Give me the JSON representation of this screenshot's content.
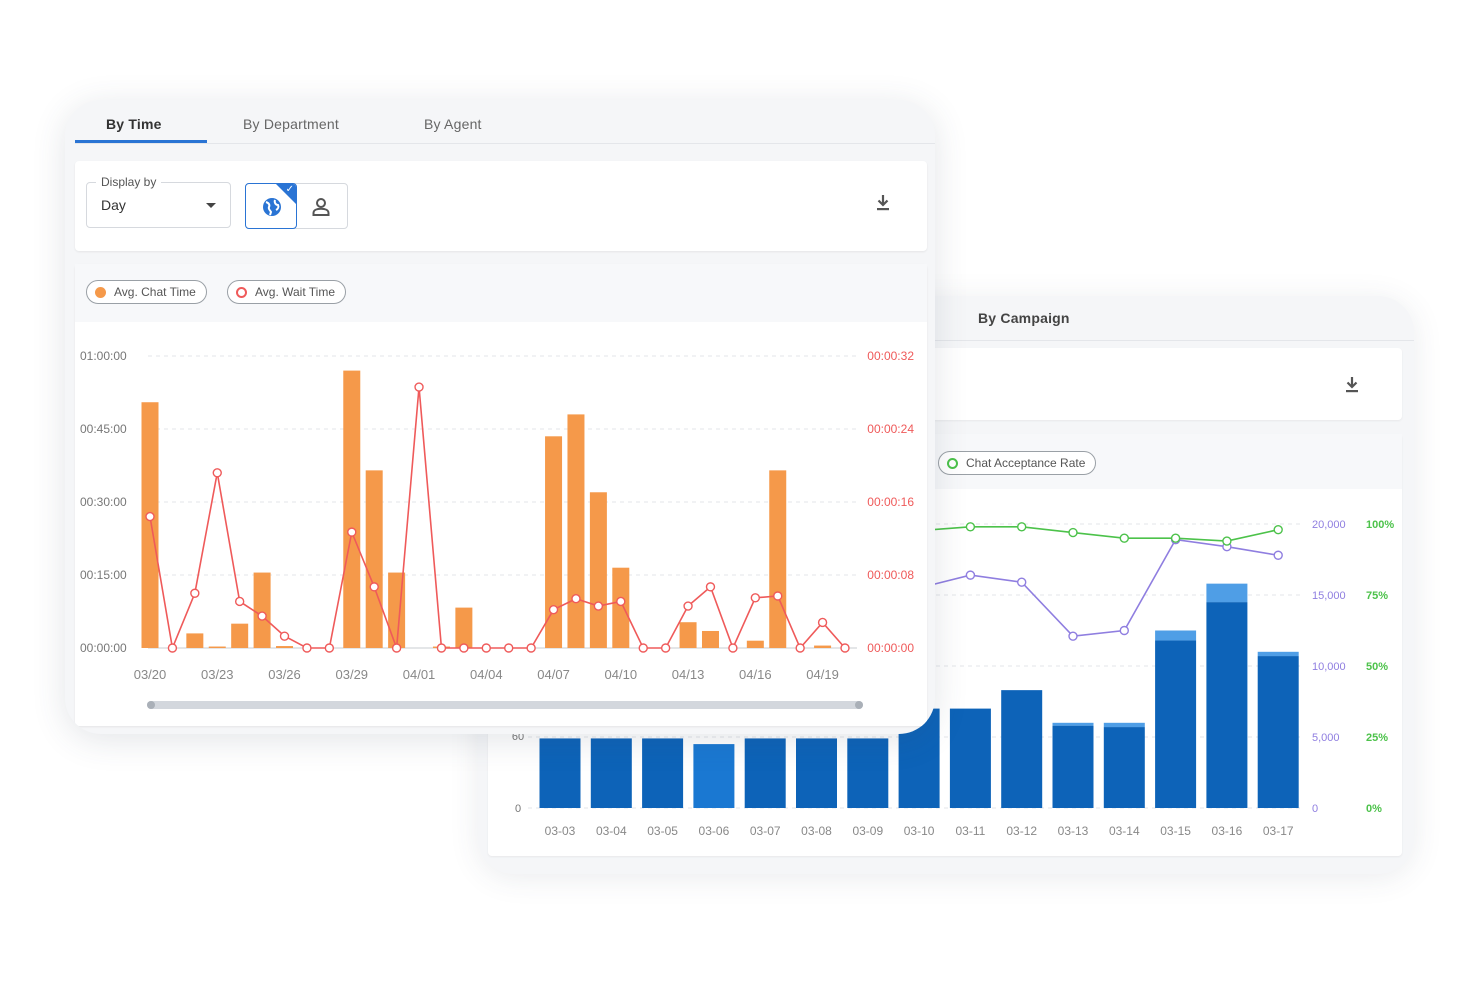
{
  "back_panel": {
    "tab_label": "By Campaign",
    "legend": [
      {
        "label": "Chat Acceptance Rate",
        "color": "#4cc24a"
      }
    ],
    "download_icon": "download-icon"
  },
  "front_panel": {
    "tabs": [
      {
        "label": "By Time",
        "active": true
      },
      {
        "label": "By Department",
        "active": false
      },
      {
        "label": "By Agent",
        "active": false
      }
    ],
    "display_by": {
      "label": "Display by",
      "value": "Day"
    },
    "segmented_toggle": [
      {
        "icon": "globe-icon",
        "selected": true
      },
      {
        "icon": "person-icon",
        "selected": false
      }
    ],
    "download_icon": "download-icon",
    "legend": [
      {
        "label": "Avg. Chat Time",
        "color": "#f5994a"
      },
      {
        "label": "Avg. Wait Time",
        "color": "#ef5a5a"
      }
    ],
    "colors": {
      "accent": "#2a74d4",
      "bar": "#f5994a",
      "line": "#ef5a5a",
      "campaign_bar": "#0d63b8",
      "campaign_bar_light": "#4f9ee6",
      "purple_line": "#8f7ee0",
      "green_line": "#4cc24a"
    }
  },
  "chart_data": [
    {
      "type": "bar",
      "x": [
        "03/20",
        "03/21",
        "03/22",
        "03/23",
        "03/24",
        "03/25",
        "03/26",
        "03/27",
        "03/28",
        "03/29",
        "03/30",
        "03/31",
        "04/01",
        "04/02",
        "04/03",
        "04/04",
        "04/05",
        "04/06",
        "04/07",
        "04/08",
        "04/09",
        "04/10",
        "04/11",
        "04/12",
        "04/13",
        "04/14",
        "04/15",
        "04/16",
        "04/17",
        "04/18",
        "04/19",
        "04/20"
      ],
      "x_tick_labels": [
        "03/20",
        "03/23",
        "03/26",
        "03/29",
        "04/01",
        "04/04",
        "04/07",
        "04/10",
        "04/13",
        "04/16",
        "04/19"
      ],
      "y_left_ticks": [
        "00:00:00",
        "00:15:00",
        "00:30:00",
        "00:45:00",
        "01:00:00"
      ],
      "y_right_ticks": [
        "00:00:00",
        "00:00:08",
        "00:00:16",
        "00:00:24",
        "00:00:32"
      ],
      "ylim_left_minutes": [
        0,
        60
      ],
      "ylim_right_seconds": [
        0,
        32
      ],
      "series": [
        {
          "name": "Avg. Chat Time",
          "kind": "bar",
          "axis": "left",
          "unit": "minutes",
          "values": [
            50.5,
            0,
            3,
            0.3,
            5,
            15.5,
            0.4,
            0,
            0,
            57,
            36.5,
            15.5,
            0,
            0.3,
            8.3,
            0,
            0,
            0,
            43.5,
            48,
            32,
            16.5,
            0,
            0,
            5.3,
            3.5,
            0,
            1.5,
            36.5,
            0,
            0.5,
            0
          ]
        },
        {
          "name": "Avg. Wait Time",
          "kind": "line",
          "axis": "right",
          "unit": "seconds",
          "values": [
            14.4,
            0,
            6,
            19.2,
            5.1,
            3.5,
            1.3,
            0,
            0,
            12.7,
            6.7,
            0,
            28.6,
            0,
            0,
            0,
            0,
            0,
            4.2,
            5.4,
            4.6,
            5.1,
            0,
            0,
            4.6,
            6.7,
            0,
            5.5,
            5.7,
            0,
            2.8,
            0
          ]
        }
      ],
      "grid": true
    },
    {
      "type": "bar",
      "x": [
        "03-03",
        "03-04",
        "03-05",
        "03-06",
        "03-07",
        "03-08",
        "03-09",
        "03-10",
        "03-11",
        "03-12",
        "03-13",
        "03-14",
        "03-15",
        "03-16",
        "03-17"
      ],
      "y_left_ticks_visible": [
        "0",
        "60"
      ],
      "y_right_ticks_count": [
        "0",
        "5,000",
        "10,000",
        "15,000",
        "20,000"
      ],
      "y_right_ticks_percent": [
        "0%",
        "25%",
        "50%",
        "75%",
        "100%"
      ],
      "series": [
        {
          "name": "",
          "kind": "bar_stack_base",
          "values": [
            4900,
            4900,
            4900,
            4500,
            4900,
            4900,
            4900,
            7000,
            7000,
            8300,
            5800,
            5700,
            11800,
            14500,
            10700
          ]
        },
        {
          "name": "",
          "kind": "bar_stack_top",
          "values": [
            0,
            0,
            0,
            0,
            0,
            0,
            0,
            0,
            0,
            0,
            200,
            300,
            700,
            1300,
            300
          ]
        },
        {
          "name": "",
          "kind": "line",
          "axis": "count",
          "values": [
            null,
            null,
            null,
            null,
            null,
            null,
            null,
            null,
            16400,
            15900,
            12100,
            12500,
            18900,
            18400,
            17800
          ]
        },
        {
          "name": "Chat Acceptance Rate",
          "kind": "line",
          "axis": "percent",
          "values": [
            null,
            null,
            null,
            null,
            null,
            null,
            null,
            null,
            99,
            99,
            97,
            95,
            95,
            94,
            98
          ]
        }
      ],
      "ylim_count": [
        0,
        20000
      ],
      "ylim_percent": [
        0,
        100
      ],
      "grid": true
    }
  ]
}
